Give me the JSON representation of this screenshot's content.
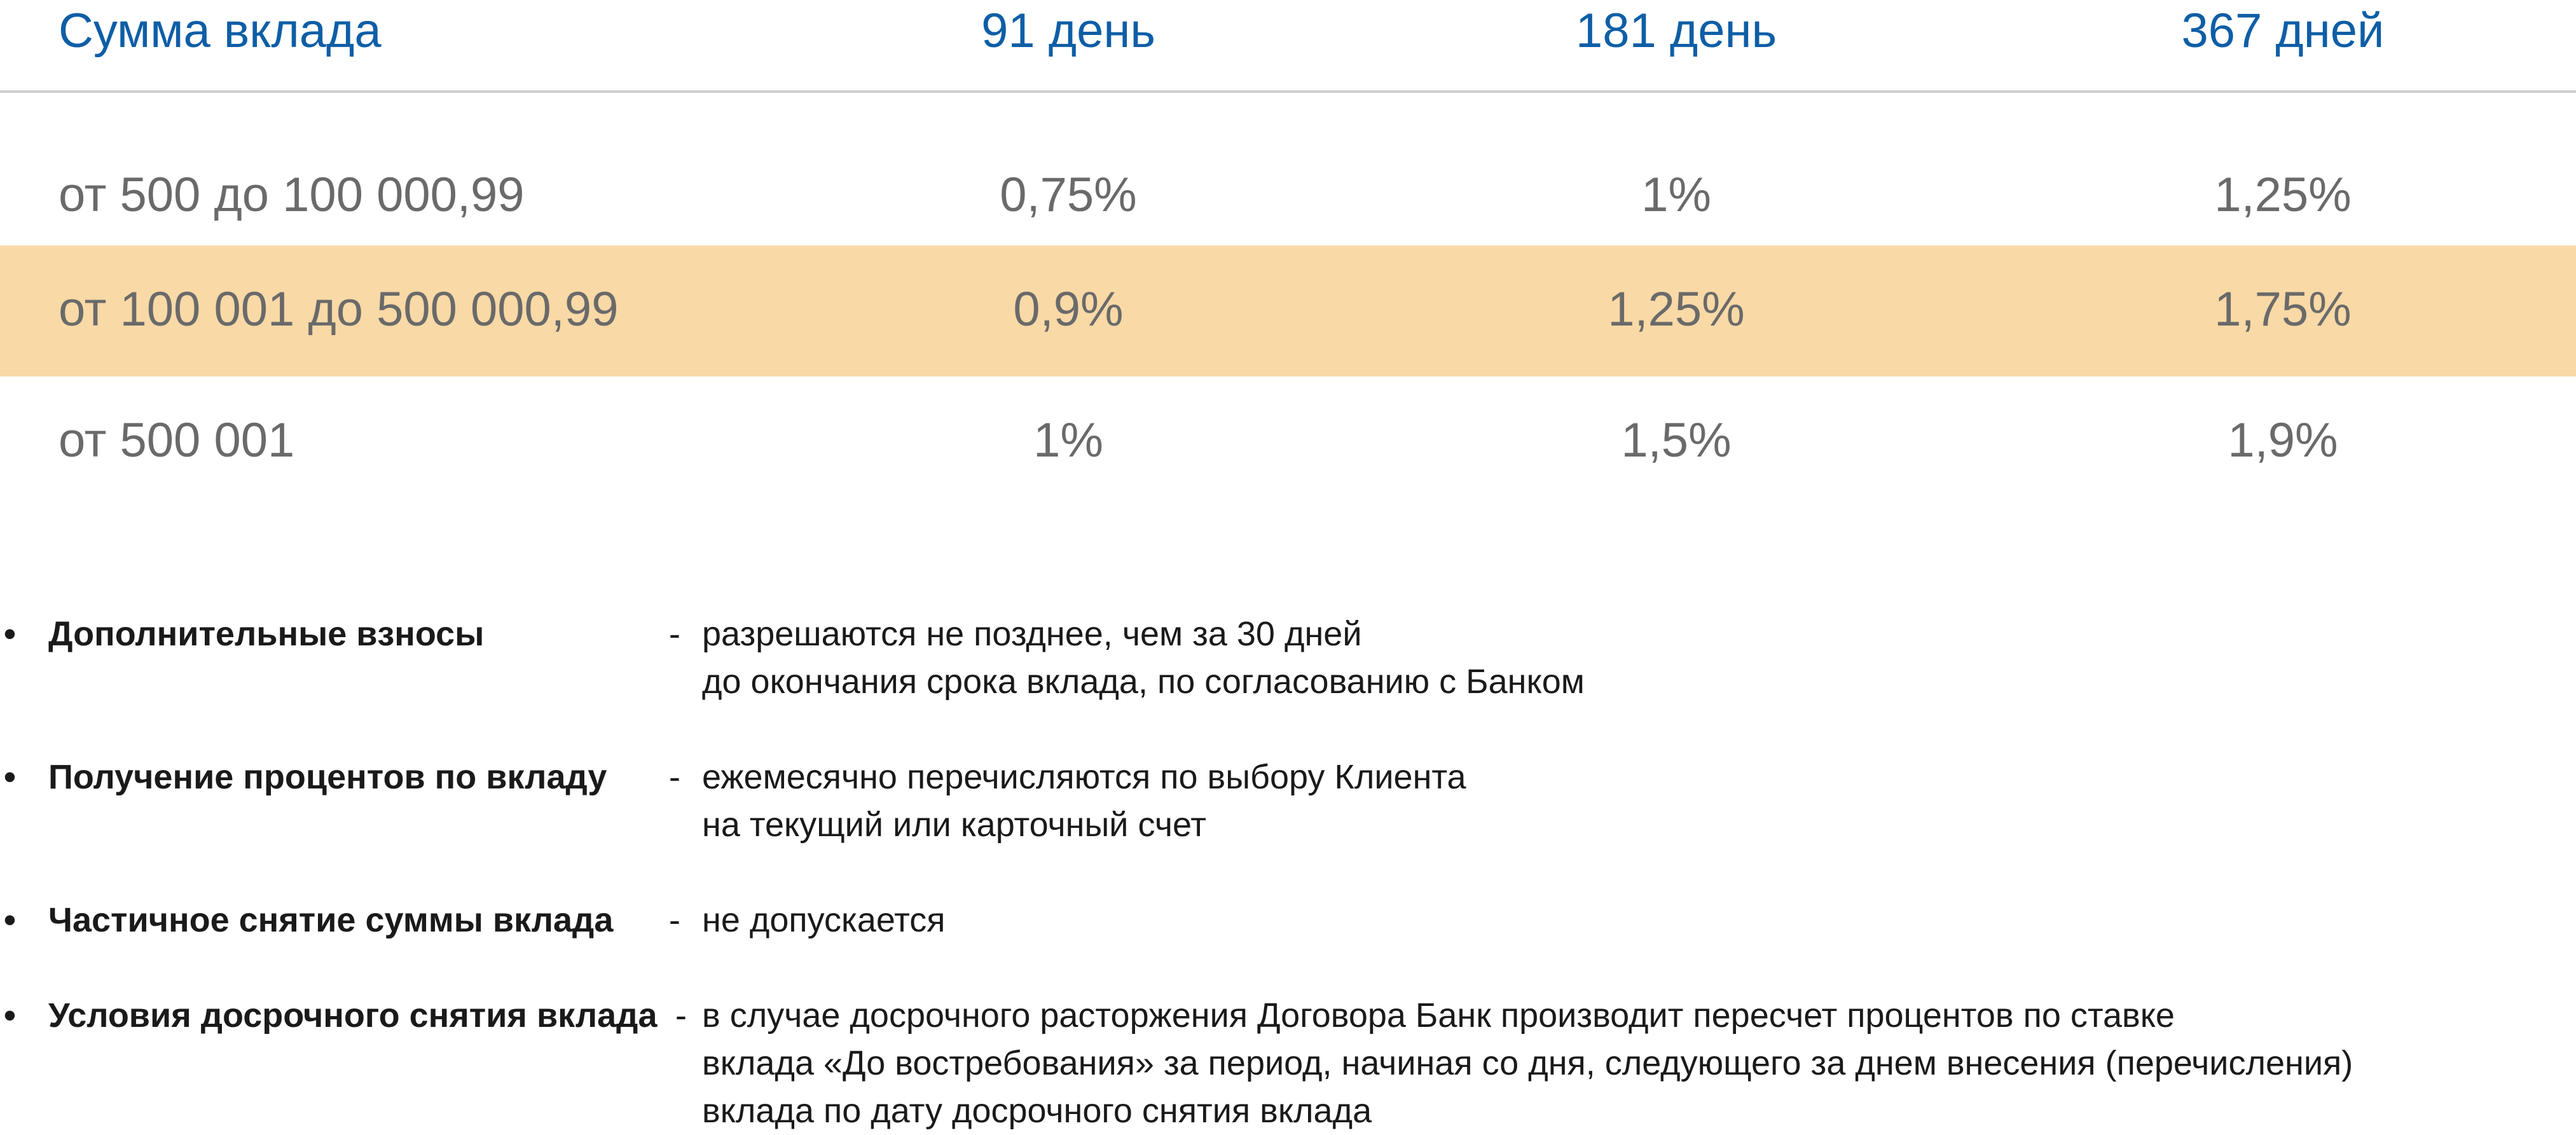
{
  "table": {
    "headers": [
      "Сумма вклада",
      "91 день",
      "181 день",
      "367 дней"
    ],
    "rows": [
      {
        "amount": "от 500 до 100 000,99",
        "rates": [
          "0,75%",
          "1%",
          "1,25%"
        ],
        "highlighted": false
      },
      {
        "amount": "от 100 001 до 500 000,99",
        "rates": [
          "0,9%",
          "1,25%",
          "1,75%"
        ],
        "highlighted": true
      },
      {
        "amount": "от 500 001",
        "rates": [
          "1%",
          "1,5%",
          "1,9%"
        ],
        "highlighted": false
      }
    ]
  },
  "terms": [
    {
      "bullet": "•",
      "label": "Дополнительные взносы",
      "dash": "-",
      "lines": [
        "разрешаются не позднее, чем за 30 дней",
        "до окончания срока вклада, по согласованию с Банком"
      ]
    },
    {
      "bullet": "•",
      "label": "Получение процентов по вкладу",
      "dash": "-",
      "lines": [
        "ежемесячно перечисляются по выбору Клиента",
        "на текущий или карточный счет"
      ]
    },
    {
      "bullet": "•",
      "label": "Частичное снятие суммы вклада",
      "dash": "-",
      "lines": [
        "не допускается"
      ]
    },
    {
      "bullet": "•",
      "label": "Условия досрочного снятия вклада",
      "dash": "-",
      "lines": [
        "в случае досрочного расторжения Договора Банк производит пересчет процентов по ставке",
        "вклада «До востребования» за период, начиная со дня, следующего за днем внесения (перечисления)",
        "вклада по дату досрочного снятия вклада"
      ]
    }
  ],
  "colors": {
    "header_text": "#0e5ea6",
    "cell_text": "#6a6a6a",
    "highlight_row": "#f9d9a6",
    "divider": "#cfcfcf",
    "body_text": "#1a1a1a"
  }
}
